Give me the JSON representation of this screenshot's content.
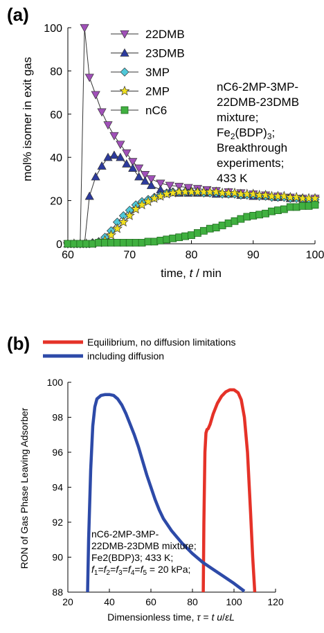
{
  "chart_data": [
    {
      "panel": "(a)",
      "type": "line",
      "xlabel": "time, t / min",
      "ylabel": "mol% isomer in exit gas",
      "xlim": [
        60,
        100
      ],
      "ylim": [
        0,
        100
      ],
      "xticks": [
        "60",
        "70",
        "80",
        "90",
        "100"
      ],
      "yticks": [
        "0",
        "20",
        "40",
        "60",
        "80",
        "100"
      ],
      "legend_position": "top-center",
      "annotation": [
        "nC6-2MP-3MP-",
        "22DMB-23DMB",
        "mixture;",
        "Fe2(BDP)3;",
        "Breakthrough",
        "experiments;",
        "433 K"
      ],
      "series": [
        {
          "name": "22DMB",
          "color": "#a050b8",
          "marker": "triangle-down",
          "x": [
            60,
            61,
            62,
            62.7,
            63.5,
            64.5,
            65.5,
            66.5,
            67.5,
            68.5,
            69.5,
            70.5,
            71.5,
            72.5,
            73.5,
            75,
            76.5,
            78,
            79.5,
            81,
            82.5,
            84,
            86,
            88,
            90,
            92,
            94,
            96,
            98,
            100
          ],
          "y": [
            0,
            0,
            0,
            100,
            77,
            69,
            61,
            55,
            50,
            46,
            42,
            38,
            35,
            32,
            30,
            28,
            27,
            26.5,
            26,
            25.5,
            25,
            24.5,
            24,
            23.5,
            23,
            22.5,
            22,
            21.5,
            21,
            21
          ]
        },
        {
          "name": "23DMB",
          "color": "#2c3a9c",
          "marker": "triangle-up",
          "x": [
            60,
            61,
            62,
            62.7,
            63.5,
            64.5,
            65.5,
            66.5,
            67.5,
            68.5,
            69.5,
            70.5,
            71.5,
            72.5,
            73.5,
            75,
            76.5,
            78,
            79.5,
            81,
            82.5,
            84,
            86,
            88,
            90,
            92,
            94,
            96,
            98,
            100
          ],
          "y": [
            0,
            0,
            0,
            0,
            22,
            31,
            36,
            40,
            41,
            40,
            37,
            35,
            31,
            29,
            27,
            25,
            24,
            23.5,
            23.5,
            23.5,
            23.5,
            23,
            23,
            22.5,
            22,
            22,
            21.5,
            21,
            21,
            20.5
          ]
        },
        {
          "name": "3MP",
          "color": "#50c8d8",
          "marker": "diamond",
          "x": [
            60,
            61,
            62,
            63,
            64,
            65,
            66,
            67,
            68,
            69,
            70,
            71,
            72,
            73,
            74,
            75,
            76,
            77,
            78,
            79,
            80,
            81,
            82,
            83,
            84,
            85,
            86,
            87,
            88,
            89,
            90,
            91,
            92,
            93,
            94,
            95,
            96,
            97,
            98,
            99,
            100
          ],
          "y": [
            0,
            0,
            0,
            0,
            0.5,
            1,
            3,
            6,
            10,
            13,
            15.5,
            18,
            19.5,
            20.5,
            21.5,
            22.5,
            23.5,
            24,
            24,
            24,
            24,
            24,
            23.5,
            23.5,
            23.5,
            23,
            23,
            23,
            22.5,
            22.5,
            22.5,
            22,
            22,
            21.5,
            21.5,
            21.5,
            21,
            21,
            21,
            20.5,
            20.5
          ]
        },
        {
          "name": "2MP",
          "color": "#f0e020",
          "marker": "star",
          "x": [
            60,
            61,
            62,
            63,
            64,
            65,
            66,
            67,
            68,
            69,
            70,
            71,
            72,
            73,
            74,
            75,
            76,
            77,
            78,
            79,
            80,
            81,
            82,
            83,
            84,
            85,
            86,
            87,
            88,
            89,
            90,
            91,
            92,
            93,
            94,
            95,
            96,
            97,
            98,
            99,
            100
          ],
          "y": [
            0,
            0,
            0,
            0,
            0,
            0.5,
            1.5,
            4,
            7,
            10,
            13,
            16,
            18,
            19.5,
            21,
            22,
            23,
            23.5,
            24,
            24,
            24,
            24,
            24,
            24,
            24,
            23.5,
            23.5,
            23.5,
            23,
            23,
            23,
            22.5,
            22.5,
            22,
            22,
            22,
            21.5,
            21.5,
            21,
            21,
            21
          ]
        },
        {
          "name": "nC6",
          "color": "#40b040",
          "marker": "square",
          "x": [
            60,
            61,
            62,
            63,
            64,
            65,
            66,
            67,
            68,
            69,
            70,
            71,
            72,
            73,
            74,
            75,
            76,
            77,
            78,
            79,
            80,
            81,
            82,
            83,
            84,
            85,
            86,
            87,
            88,
            89,
            90,
            91,
            92,
            93,
            94,
            95,
            96,
            97,
            98,
            99,
            100
          ],
          "y": [
            0,
            0,
            0,
            0,
            0,
            0.5,
            0.5,
            0.5,
            0.5,
            0.5,
            0.5,
            0.5,
            0.5,
            1,
            1,
            1.5,
            2,
            2.5,
            3,
            3.5,
            4,
            5,
            6,
            7,
            7.5,
            8.5,
            9.5,
            10.5,
            11.5,
            12.5,
            13,
            13.5,
            14,
            15,
            15.5,
            16,
            17,
            17,
            17.5,
            17.5,
            18
          ]
        }
      ]
    },
    {
      "panel": "(b)",
      "type": "line",
      "xlabel": "Dimensionless time, τ = t u/εL",
      "ylabel": "RON of Gas Phase Leaving Adsorber",
      "xlim": [
        20,
        120
      ],
      "ylim": [
        88,
        100
      ],
      "xticks": [
        "20",
        "40",
        "60",
        "80",
        "100",
        "120"
      ],
      "yticks": [
        "88",
        "90",
        "92",
        "94",
        "96",
        "98",
        "100"
      ],
      "legend_position": "top",
      "annotation": [
        "nC6-2MP-3MP-",
        "22DMB-23DMB mixture;",
        "Fe2(BDP)3; 433 K;",
        "f1=f2=f3=f4=f5 = 20 kPa;"
      ],
      "series": [
        {
          "name": "Equilibrium, no diffusion limitations",
          "color": "#e53228",
          "x": [
            85.2,
            85.5,
            86,
            86.5,
            87,
            87.6,
            88.5,
            90,
            92,
            94,
            96,
            98,
            100,
            102,
            103.5,
            105,
            106.5,
            108,
            109,
            110
          ],
          "y": [
            88,
            92,
            96,
            97.1,
            97.3,
            97.35,
            97.6,
            98.2,
            98.8,
            99.2,
            99.45,
            99.57,
            99.57,
            99.4,
            99,
            98,
            96,
            92.5,
            90,
            88
          ]
        },
        {
          "name": "including diffusion",
          "color": "#2d4aa8",
          "x": [
            29.5,
            30,
            31,
            32,
            33,
            34,
            36,
            38,
            40,
            42,
            44,
            46,
            48,
            50,
            52,
            54,
            56,
            58,
            60,
            62,
            64,
            66,
            70,
            75,
            80,
            85,
            90,
            95,
            100,
            105
          ],
          "y": [
            88,
            91,
            95,
            97.5,
            98.6,
            99.05,
            99.25,
            99.3,
            99.3,
            99.25,
            99.05,
            98.7,
            98.2,
            97.6,
            97,
            96.3,
            95.5,
            94.7,
            94,
            93.3,
            92.7,
            92.2,
            91.5,
            90.8,
            90.2,
            89.7,
            89.3,
            88.9,
            88.5,
            88.05
          ]
        }
      ]
    }
  ]
}
